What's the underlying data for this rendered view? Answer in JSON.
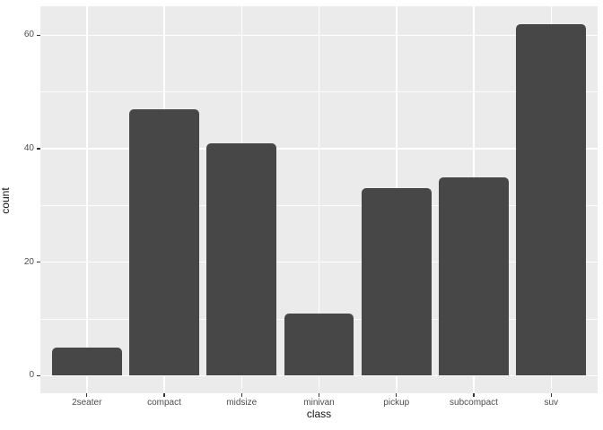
{
  "chart_data": {
    "type": "bar",
    "title": "",
    "xlabel": "class",
    "ylabel": "count",
    "categories": [
      "2seater",
      "compact",
      "midsize",
      "minivan",
      "pickup",
      "subcompact",
      "suv"
    ],
    "values": [
      5,
      47,
      41,
      11,
      33,
      35,
      62
    ],
    "y_ticks": [
      0,
      20,
      40,
      60
    ],
    "y_minor_ticks": [
      10,
      30,
      50
    ],
    "ylim": [
      -3.1,
      65.1
    ],
    "bar_width_fraction": 0.9,
    "discrete_edge_padding": 0.6,
    "legend": "none",
    "grid": "on",
    "colors": {
      "bar_fill": "#474747",
      "panel_background": "#EBEBEB",
      "gridline": "#FFFFFF",
      "tick_label": "#4D4D4D",
      "axis_title": "#111111",
      "tick_mark": "#333333",
      "figure_background": "#FFFFFF"
    }
  }
}
